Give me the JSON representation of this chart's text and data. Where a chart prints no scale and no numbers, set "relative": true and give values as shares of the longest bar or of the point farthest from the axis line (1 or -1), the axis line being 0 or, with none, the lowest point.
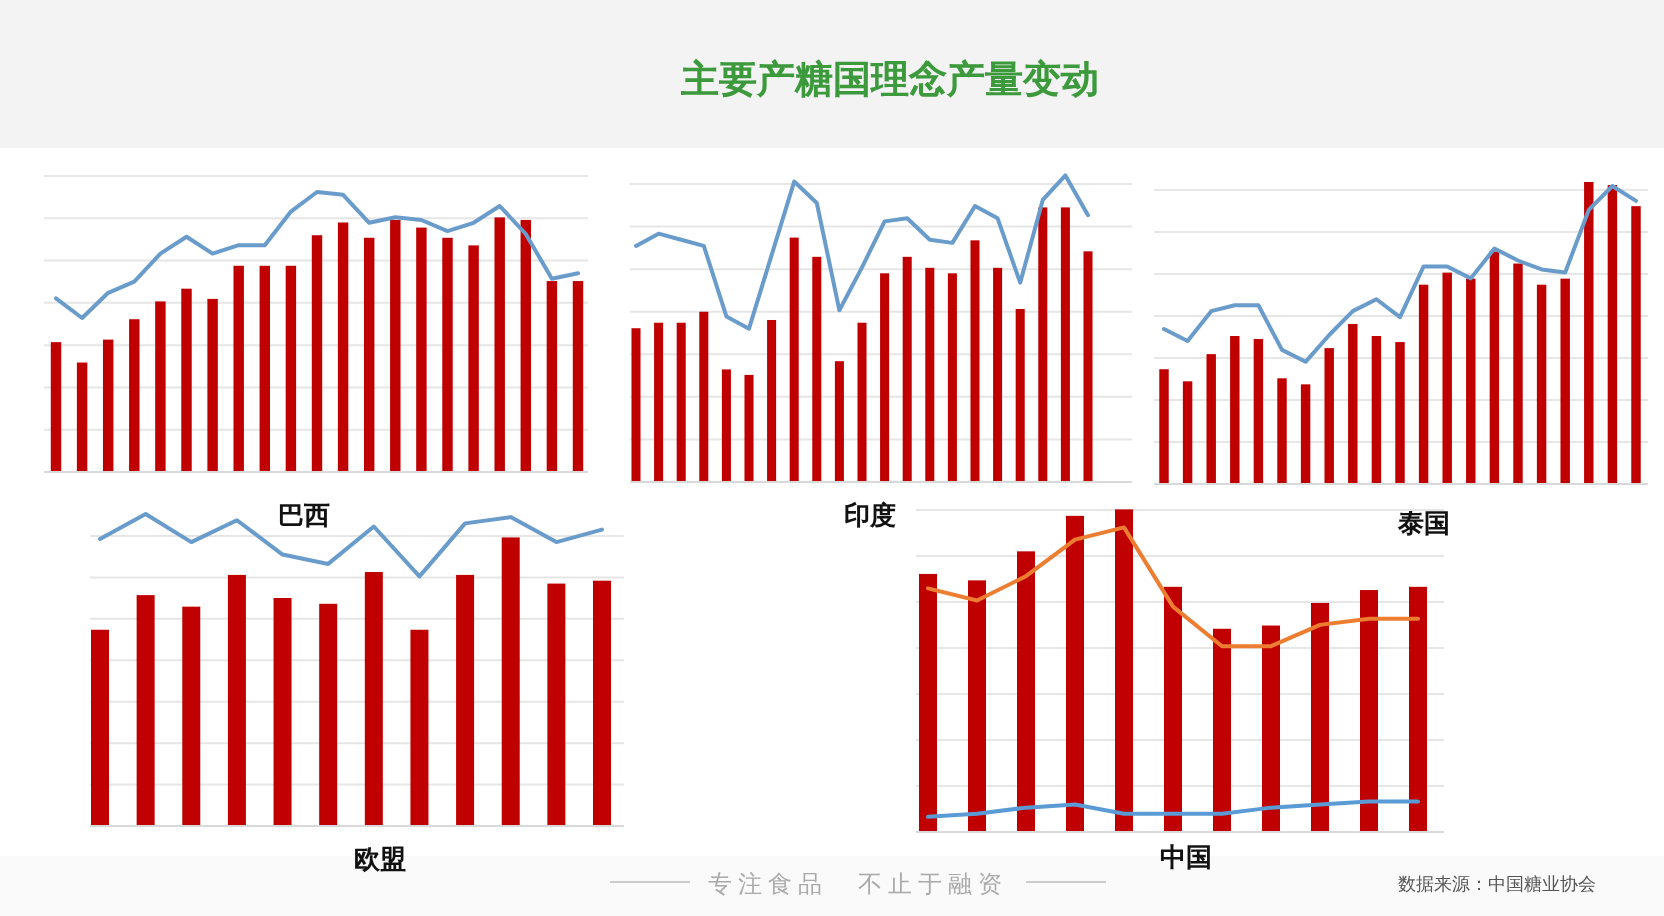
{
  "chart_data": [
    {
      "type": "other",
      "title": "主要产糖国理念产量变动",
      "annotations": [
        "专注食品　不止于融资",
        "数据来源：中国糖业协会"
      ]
    },
    {
      "type": "bar",
      "title": "巴西",
      "relative": true,
      "grid": true,
      "categories": [
        null,
        null,
        null,
        null,
        null,
        null,
        null,
        null,
        null,
        null,
        null,
        null,
        null,
        null,
        null,
        null,
        null,
        null,
        null,
        null,
        null
      ],
      "series": [
        {
          "color": "#c00000",
          "values": [
            0.51,
            0.43,
            0.52,
            0.6,
            0.67,
            0.72,
            0.68,
            0.81,
            0.81,
            0.81,
            0.93,
            0.98,
            0.92,
            0.99,
            0.96,
            0.92,
            0.89,
            1.0,
            0.99,
            0.75,
            0.75
          ]
        }
      ]
    },
    {
      "type": "line",
      "relative": true,
      "categories": [
        null,
        null,
        null,
        null,
        null,
        null,
        null,
        null,
        null,
        null,
        null,
        null,
        null,
        null,
        null,
        null,
        null,
        null,
        null,
        null,
        null
      ],
      "series": [
        {
          "color": "#6a9ccb",
          "values": [
            0.62,
            0.55,
            0.64,
            0.68,
            0.78,
            0.84,
            0.78,
            0.81,
            0.81,
            0.93,
            1.0,
            0.99,
            0.89,
            0.91,
            0.9,
            0.86,
            0.89,
            0.95,
            0.85,
            0.69,
            0.71
          ]
        }
      ]
    },
    {
      "type": "bar",
      "title": "印度",
      "relative": true,
      "grid": true,
      "categories": [
        null,
        null,
        null,
        null,
        null,
        null,
        null,
        null,
        null,
        null,
        null,
        null,
        null,
        null,
        null,
        null,
        null,
        null,
        null,
        null,
        null
      ],
      "series": [
        {
          "color": "#c00000",
          "values": [
            0.56,
            0.58,
            0.58,
            0.62,
            0.41,
            0.39,
            0.59,
            0.89,
            0.82,
            0.44,
            0.58,
            0.76,
            0.82,
            0.78,
            0.76,
            0.88,
            0.78,
            0.63,
            1.0,
            1.0,
            0.84
          ]
        }
      ]
    },
    {
      "type": "line",
      "relative": true,
      "categories": [
        null,
        null,
        null,
        null,
        null,
        null,
        null,
        null,
        null,
        null,
        null,
        null,
        null,
        null,
        null,
        null,
        null,
        null,
        null,
        null,
        null
      ],
      "series": [
        {
          "color": "#6a9ccb",
          "values": [
            0.77,
            0.81,
            0.79,
            0.77,
            0.54,
            0.5,
            0.74,
            0.98,
            0.91,
            0.56,
            0.7,
            0.85,
            0.86,
            0.79,
            0.78,
            0.9,
            0.86,
            0.65,
            0.92,
            1.0,
            0.87
          ]
        }
      ]
    },
    {
      "type": "bar",
      "title": "泰国",
      "relative": true,
      "grid": true,
      "categories": [
        null,
        null,
        null,
        null,
        null,
        null,
        null,
        null,
        null,
        null,
        null,
        null,
        null,
        null,
        null,
        null,
        null,
        null,
        null,
        null,
        null
      ],
      "series": [
        {
          "color": "#c00000",
          "values": [
            0.38,
            0.34,
            0.43,
            0.49,
            0.48,
            0.35,
            0.33,
            0.45,
            0.53,
            0.49,
            0.47,
            0.66,
            0.7,
            0.68,
            0.77,
            0.73,
            0.66,
            0.68,
            1.0,
            0.99,
            0.92
          ]
        }
      ]
    },
    {
      "type": "line",
      "relative": true,
      "categories": [
        null,
        null,
        null,
        null,
        null,
        null,
        null,
        null,
        null,
        null,
        null,
        null,
        null,
        null,
        null,
        null,
        null,
        null,
        null,
        null,
        null
      ],
      "series": [
        {
          "color": "#6a9ccb",
          "values": [
            0.52,
            0.48,
            0.58,
            0.6,
            0.6,
            0.45,
            0.41,
            0.5,
            0.58,
            0.62,
            0.56,
            0.73,
            0.73,
            0.69,
            0.79,
            0.75,
            0.72,
            0.71,
            0.92,
            1.0,
            0.95
          ]
        }
      ]
    },
    {
      "type": "bar",
      "title": "欧盟",
      "relative": true,
      "grid": true,
      "categories": [
        null,
        null,
        null,
        null,
        null,
        null,
        null,
        null,
        null,
        null,
        null,
        null
      ],
      "series": [
        {
          "color": "#c00000",
          "values": [
            0.68,
            0.8,
            0.76,
            0.87,
            0.79,
            0.77,
            0.88,
            0.68,
            0.87,
            1.0,
            0.84,
            0.85
          ]
        }
      ]
    },
    {
      "type": "line",
      "relative": true,
      "categories": [
        null,
        null,
        null,
        null,
        null,
        null,
        null,
        null,
        null,
        null,
        null,
        null
      ],
      "series": [
        {
          "color": "#6a9ccb",
          "values": [
            0.92,
            1.0,
            0.91,
            0.98,
            0.87,
            0.84,
            0.96,
            0.8,
            0.97,
            0.99,
            0.91,
            0.95
          ]
        }
      ]
    },
    {
      "type": "bar",
      "title": "中国",
      "relative": true,
      "grid": true,
      "categories": [
        null,
        null,
        null,
        null,
        null,
        null,
        null,
        null,
        null,
        null,
        null
      ],
      "series": [
        {
          "color": "#c00000",
          "values": [
            0.8,
            0.78,
            0.87,
            0.98,
            1.0,
            0.76,
            0.63,
            0.64,
            0.71,
            0.75,
            0.76
          ]
        }
      ]
    },
    {
      "type": "line",
      "relative": true,
      "categories": [
        null,
        null,
        null,
        null,
        null,
        null,
        null,
        null,
        null,
        null,
        null
      ],
      "series": [
        {
          "color": "#ed7d31",
          "values": [
            0.8,
            0.76,
            0.84,
            0.96,
            1.0,
            0.74,
            0.61,
            0.61,
            0.68,
            0.7,
            0.7
          ]
        },
        {
          "color": "#5b9bd5",
          "values": [
            0.05,
            0.06,
            0.08,
            0.09,
            0.06,
            0.06,
            0.06,
            0.08,
            0.09,
            0.1,
            0.1
          ]
        }
      ]
    }
  ]
}
